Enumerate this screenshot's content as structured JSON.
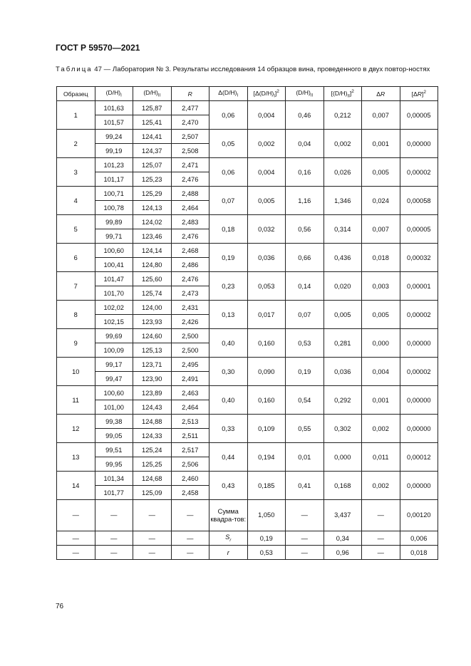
{
  "header": {
    "standard": "ГОСТ Р 59570—2021"
  },
  "caption": {
    "label": "Таблица",
    "text": "47 — Лаборатория № 3. Результаты исследования 14 образцов вина, проведенного в двух повтор-ностях"
  },
  "table": {
    "columns": [
      "Образец",
      "(D/H)I",
      "(D/H)II",
      "R",
      "Δ(D/H)I",
      "[Δ(D/H)I]2",
      "(D/H)II",
      "[(D/H)II]2",
      "ΔR",
      "[ΔR]2"
    ],
    "rows": [
      {
        "sample": "1",
        "a": [
          "101,63",
          "101,57"
        ],
        "b": [
          "125,87",
          "125,41"
        ],
        "r": [
          "2,477",
          "2,470"
        ],
        "d1": "0,06",
        "d1sq": "0,004",
        "d2": "0,46",
        "d2sq": "0,212",
        "dr": "0,007",
        "drsq": "0,00005"
      },
      {
        "sample": "2",
        "a": [
          "99,24",
          "99,19"
        ],
        "b": [
          "124,41",
          "124,37"
        ],
        "r": [
          "2,507",
          "2,508"
        ],
        "d1": "0,05",
        "d1sq": "0,002",
        "d2": "0,04",
        "d2sq": "0,002",
        "dr": "0,001",
        "drsq": "0,00000"
      },
      {
        "sample": "3",
        "a": [
          "101,23",
          "101,17"
        ],
        "b": [
          "125,07",
          "125,23"
        ],
        "r": [
          "2,471",
          "2,476"
        ],
        "d1": "0,06",
        "d1sq": "0,004",
        "d2": "0,16",
        "d2sq": "0,026",
        "dr": "0,005",
        "drsq": "0,00002"
      },
      {
        "sample": "4",
        "a": [
          "100,71",
          "100,78"
        ],
        "b": [
          "125,29",
          "124,13"
        ],
        "r": [
          "2,488",
          "2,464"
        ],
        "d1": "0,07",
        "d1sq": "0,005",
        "d2": "1,16",
        "d2sq": "1,346",
        "dr": "0,024",
        "drsq": "0,00058"
      },
      {
        "sample": "5",
        "a": [
          "99,89",
          "99,71"
        ],
        "b": [
          "124,02",
          "123,46"
        ],
        "r": [
          "2,483",
          "2,476"
        ],
        "d1": "0,18",
        "d1sq": "0,032",
        "d2": "0,56",
        "d2sq": "0,314",
        "dr": "0,007",
        "drsq": "0,00005"
      },
      {
        "sample": "6",
        "a": [
          "100,60",
          "100,41"
        ],
        "b": [
          "124,14",
          "124,80"
        ],
        "r": [
          "2,468",
          "2,486"
        ],
        "d1": "0,19",
        "d1sq": "0,036",
        "d2": "0,66",
        "d2sq": "0,436",
        "dr": "0,018",
        "drsq": "0,00032"
      },
      {
        "sample": "7",
        "a": [
          "101,47",
          "101,70"
        ],
        "b": [
          "125,60",
          "125,74"
        ],
        "r": [
          "2,476",
          "2,473"
        ],
        "d1": "0,23",
        "d1sq": "0,053",
        "d2": "0,14",
        "d2sq": "0,020",
        "dr": "0,003",
        "drsq": "0,00001"
      },
      {
        "sample": "8",
        "a": [
          "102,02",
          "102,15"
        ],
        "b": [
          "124,00",
          "123,93"
        ],
        "r": [
          "2,431",
          "2,426"
        ],
        "d1": "0,13",
        "d1sq": "0,017",
        "d2": "0,07",
        "d2sq": "0,005",
        "dr": "0,005",
        "drsq": "0,00002"
      },
      {
        "sample": "9",
        "a": [
          "99,69",
          "100,09"
        ],
        "b": [
          "124,60",
          "125,13"
        ],
        "r": [
          "2,500",
          "2,500"
        ],
        "d1": "0,40",
        "d1sq": "0,160",
        "d2": "0,53",
        "d2sq": "0,281",
        "dr": "0,000",
        "drsq": "0,00000"
      },
      {
        "sample": "10",
        "a": [
          "99,17",
          "99,47"
        ],
        "b": [
          "123,71",
          "123,90"
        ],
        "r": [
          "2,495",
          "2,491"
        ],
        "d1": "0,30",
        "d1sq": "0,090",
        "d2": "0,19",
        "d2sq": "0,036",
        "dr": "0,004",
        "drsq": "0,00002"
      },
      {
        "sample": "11",
        "a": [
          "100,60",
          "101,00"
        ],
        "b": [
          "123,89",
          "124,43"
        ],
        "r": [
          "2,463",
          "2,464"
        ],
        "d1": "0,40",
        "d1sq": "0,160",
        "d2": "0,54",
        "d2sq": "0,292",
        "dr": "0,001",
        "drsq": "0,00000"
      },
      {
        "sample": "12",
        "a": [
          "99,38",
          "99,05"
        ],
        "b": [
          "124,88",
          "124,33"
        ],
        "r": [
          "2,513",
          "2,511"
        ],
        "d1": "0,33",
        "d1sq": "0,109",
        "d2": "0,55",
        "d2sq": "0,302",
        "dr": "0,002",
        "drsq": "0,00000"
      },
      {
        "sample": "13",
        "a": [
          "99,51",
          "99,95"
        ],
        "b": [
          "125,24",
          "125,25"
        ],
        "r": [
          "2,517",
          "2,506"
        ],
        "d1": "0,44",
        "d1sq": "0,194",
        "d2": "0,01",
        "d2sq": "0,000",
        "dr": "0,011",
        "drsq": "0,00012"
      },
      {
        "sample": "14",
        "a": [
          "101,34",
          "101,77"
        ],
        "b": [
          "124,68",
          "125,09"
        ],
        "r": [
          "2,460",
          "2,458"
        ],
        "d1": "0,43",
        "d1sq": "0,185",
        "d2": "0,41",
        "d2sq": "0,168",
        "dr": "0,002",
        "drsq": "0,00000"
      }
    ],
    "summary": [
      {
        "label": "Сумма квадра-тов:",
        "cells": [
          "—",
          "—",
          "—",
          "—",
          "1,050",
          "—",
          "3,437",
          "—",
          "0,00120"
        ]
      },
      {
        "label": "Sr",
        "cells": [
          "—",
          "—",
          "—",
          "—",
          "0,19",
          "—",
          "0,34",
          "—",
          "0,006"
        ]
      },
      {
        "label": "r",
        "cells": [
          "—",
          "—",
          "—",
          "—",
          "0,53",
          "—",
          "0,96",
          "—",
          "0,018"
        ]
      }
    ]
  },
  "footer": {
    "page_number": "76"
  }
}
